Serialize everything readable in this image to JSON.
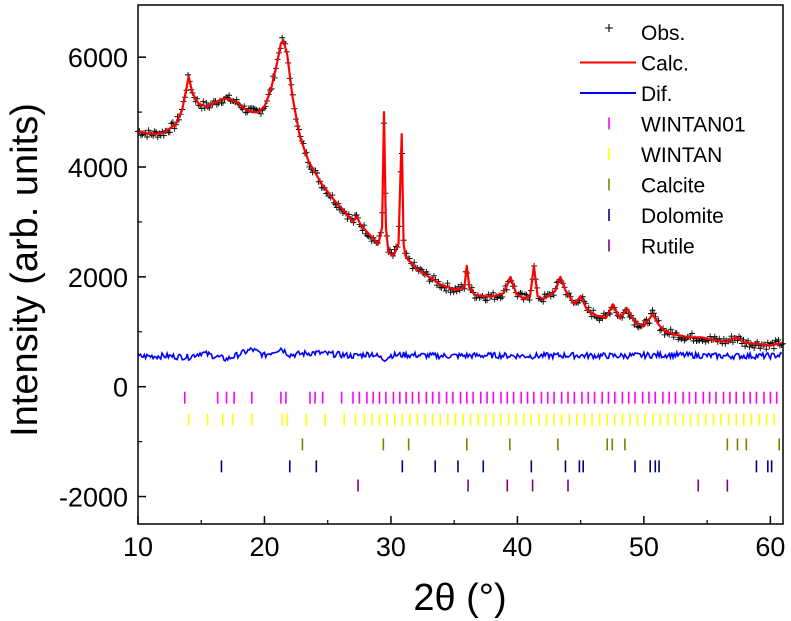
{
  "chart_data": {
    "type": "line",
    "title": "",
    "xlabel": "2θ (°)",
    "ylabel": "Intensity (arb. units)",
    "xlim": [
      10,
      61
    ],
    "ylim": [
      -2500,
      6950
    ],
    "xticks": [
      10,
      20,
      30,
      40,
      50,
      60
    ],
    "xtick_labels": [
      "10",
      "20",
      "30",
      "40",
      "50",
      "60"
    ],
    "yticks": [
      -2000,
      0,
      2000,
      4000,
      6000
    ],
    "ytick_labels": [
      "-2000",
      "0",
      "2000",
      "4000",
      "6000"
    ],
    "grid": false,
    "legend_position": "top-right",
    "legend": [
      {
        "label": "Obs.",
        "color": "#000000",
        "kind": "cross"
      },
      {
        "label": "Calc.",
        "color": "#ff0000",
        "kind": "line"
      },
      {
        "label": "Dif.",
        "color": "#0000ff",
        "kind": "line"
      },
      {
        "label": "WINTAN01",
        "color": "#ff00ff",
        "kind": "tick"
      },
      {
        "label": "WINTAN",
        "color": "#ffff00",
        "kind": "tick"
      },
      {
        "label": "Calcite",
        "color": "#808000",
        "kind": "tick"
      },
      {
        "label": "Dolomite",
        "color": "#000080",
        "kind": "tick"
      },
      {
        "label": "Rutile",
        "color": "#800080",
        "kind": "tick"
      }
    ],
    "calc_profile": {
      "name": "Calc.",
      "color": "#ff0000",
      "x": [
        10,
        11,
        12,
        13,
        13.5,
        13.8,
        14.0,
        14.3,
        14.8,
        15.5,
        16.3,
        16.8,
        17.3,
        18.0,
        18.5,
        19.0,
        19.5,
        20.0,
        20.5,
        21.0,
        21.3,
        21.5,
        21.8,
        22.2,
        22.8,
        23.5,
        24.5,
        25.5,
        26.5,
        27.0,
        27.3,
        27.6,
        28.0,
        28.5,
        29.0,
        29.3,
        29.45,
        29.6,
        29.8,
        30.2,
        30.6,
        30.85,
        31.0,
        31.15,
        31.4,
        32.0,
        33.0,
        34.0,
        35.0,
        35.8,
        36.0,
        36.2,
        36.6,
        37.2,
        38.0,
        38.9,
        39.45,
        39.9,
        40.5,
        41.0,
        41.3,
        41.6,
        42.0,
        42.5,
        43.0,
        43.4,
        43.8,
        44.5,
        45.0,
        45.5,
        46.2,
        47.0,
        47.55,
        48.1,
        48.7,
        49.3,
        50.0,
        50.7,
        51.2,
        51.7,
        52.5,
        53.5,
        54.5,
        55.5,
        56.5,
        57.3,
        58.0,
        59.0,
        60.0,
        61.0
      ],
      "y": [
        4650,
        4600,
        4620,
        4780,
        5050,
        5400,
        5650,
        5350,
        5150,
        5100,
        5200,
        5250,
        5230,
        5150,
        5050,
        5000,
        5000,
        5100,
        5400,
        5900,
        6250,
        6300,
        6050,
        5300,
        4550,
        4100,
        3700,
        3400,
        3150,
        3000,
        3100,
        2950,
        2850,
        2720,
        2600,
        2900,
        5000,
        2900,
        2450,
        2380,
        2600,
        4600,
        2600,
        2380,
        2300,
        2150,
        2000,
        1850,
        1770,
        1800,
        2200,
        1800,
        1680,
        1650,
        1640,
        1700,
        2000,
        1700,
        1600,
        1650,
        2200,
        1650,
        1600,
        1650,
        1750,
        2000,
        1750,
        1500,
        1650,
        1400,
        1300,
        1250,
        1500,
        1250,
        1420,
        1180,
        1100,
        1320,
        1120,
        1000,
        950,
        900,
        900,
        850,
        820,
        900,
        800,
        780,
        750,
        800
      ]
    },
    "dif_profile": {
      "name": "Dif.",
      "color": "#0000ff",
      "x": [
        10,
        12,
        14,
        15,
        17,
        19,
        20,
        21.3,
        22,
        24,
        27,
        28.5,
        29.45,
        30,
        31,
        34,
        38,
        41,
        44,
        48,
        52,
        56,
        60,
        61
      ],
      "y": [
        550,
        560,
        540,
        620,
        500,
        680,
        570,
        700,
        580,
        620,
        560,
        600,
        500,
        570,
        580,
        560,
        570,
        560,
        570,
        560,
        580,
        560,
        560,
        580
      ]
    },
    "reflection_ticks": [
      {
        "name": "WINTAN01",
        "color": "#ff00ff",
        "row_y": -200,
        "positions": [
          13.7,
          16.3,
          17.0,
          17.6,
          19.0,
          21.3,
          21.7,
          23.6,
          24.0,
          24.6,
          26.1,
          27.0,
          27.5,
          28.1,
          28.6,
          29.1,
          29.6,
          30.2,
          30.7,
          31.2,
          31.7,
          32.2,
          32.8,
          33.3,
          33.8,
          34.4,
          34.9,
          35.5,
          36.0,
          36.5,
          37.1,
          37.6,
          38.1,
          38.7,
          39.2,
          39.7,
          40.3,
          40.8,
          41.3,
          41.9,
          42.4,
          42.9,
          43.5,
          44.0,
          44.5,
          45.1,
          45.6,
          46.1,
          46.7,
          47.2,
          47.7,
          48.3,
          48.8,
          49.3,
          49.9,
          50.4,
          50.9,
          51.5,
          52.0,
          52.5,
          53.1,
          53.6,
          54.1,
          54.7,
          55.2,
          55.7,
          56.3,
          56.8,
          57.3,
          57.9,
          58.4,
          58.9,
          59.5,
          60.0,
          60.5
        ]
      },
      {
        "name": "WINTAN",
        "color": "#ffff00",
        "row_y": -600,
        "positions": [
          14.0,
          15.5,
          16.7,
          17.5,
          19.0,
          21.4,
          21.8,
          23.3,
          24.8,
          26.3,
          27.2,
          27.9,
          28.5,
          29.1,
          29.7,
          30.3,
          30.9,
          31.5,
          32.1,
          32.7,
          33.3,
          33.9,
          34.5,
          35.1,
          35.7,
          36.3,
          36.9,
          37.5,
          38.1,
          38.7,
          39.3,
          39.9,
          40.5,
          41.1,
          41.7,
          42.3,
          42.9,
          43.5,
          44.1,
          44.7,
          45.3,
          45.9,
          46.5,
          47.1,
          47.7,
          48.3,
          48.9,
          49.5,
          50.1,
          50.7,
          51.3,
          51.9,
          52.5,
          53.1,
          53.7,
          54.3,
          54.9,
          55.5,
          56.1,
          56.7,
          57.3,
          57.9,
          58.5,
          59.1,
          59.7,
          60.3
        ]
      },
      {
        "name": "Calcite",
        "color": "#808000",
        "row_y": -1050,
        "positions": [
          23.0,
          29.4,
          31.4,
          36.0,
          39.4,
          43.2,
          47.1,
          47.5,
          48.5,
          56.6,
          57.4,
          58.1,
          60.7
        ]
      },
      {
        "name": "Dolomite",
        "color": "#000080",
        "row_y": -1450,
        "positions": [
          16.6,
          22.0,
          24.1,
          30.9,
          33.5,
          35.3,
          37.3,
          41.1,
          43.8,
          44.9,
          45.2,
          49.3,
          50.5,
          50.9,
          51.2,
          58.9,
          59.8,
          60.1
        ]
      },
      {
        "name": "Rutile",
        "color": "#800080",
        "row_y": -1800,
        "positions": [
          27.4,
          36.1,
          39.2,
          41.2,
          44.0,
          54.3,
          56.6
        ]
      }
    ]
  }
}
